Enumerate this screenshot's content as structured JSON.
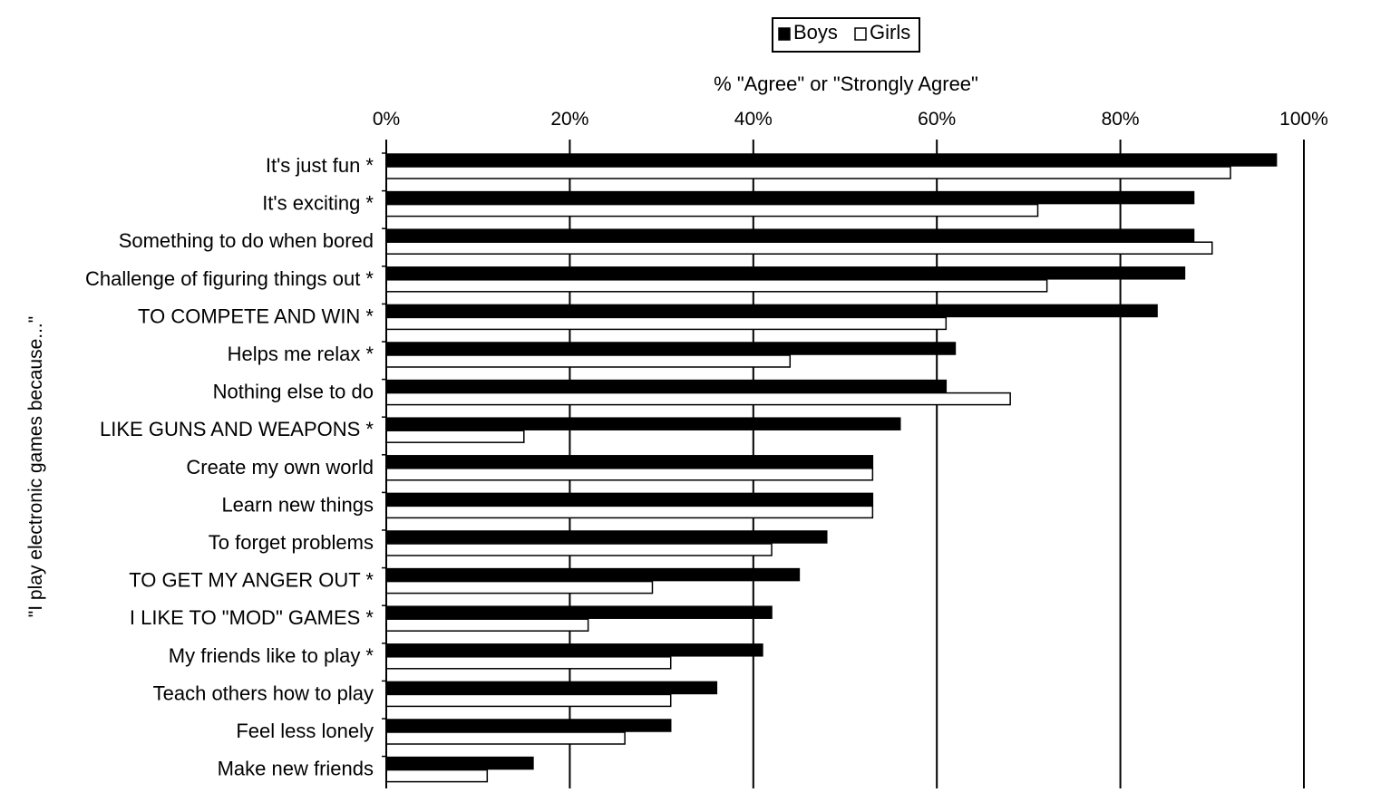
{
  "chart_data": {
    "type": "bar",
    "orientation": "horizontal",
    "xlabel": "% \"Agree\" or \"Strongly Agree\"",
    "ylabel": "\"I play electronic games because...\"",
    "xlim": [
      0,
      100
    ],
    "xticks": [
      "0%",
      "20%",
      "40%",
      "60%",
      "80%",
      "100%"
    ],
    "grid": "vertical",
    "legend_position": "top-center",
    "categories": [
      "It's just fun *",
      "It's exciting *",
      "Something to do when bored",
      "Challenge of figuring things out *",
      "TO COMPETE AND WIN *",
      "Helps me relax *",
      "Nothing else to do",
      "LIKE GUNS AND WEAPONS *",
      "Create my own world",
      "Learn new things",
      "To forget problems",
      "TO GET MY ANGER OUT *",
      "I LIKE TO \"MOD\" GAMES *",
      "My friends like to play *",
      "Teach others how to play",
      "Feel less lonely",
      "Make new friends"
    ],
    "series": [
      {
        "name": "Boys",
        "color": "#000000",
        "fill": "solid",
        "values": [
          97,
          88,
          88,
          87,
          84,
          62,
          61,
          56,
          53,
          53,
          48,
          45,
          42,
          41,
          36,
          31,
          16
        ]
      },
      {
        "name": "Girls",
        "color": "#ffffff",
        "fill": "outline",
        "values": [
          92,
          71,
          90,
          72,
          61,
          44,
          68,
          15,
          53,
          53,
          42,
          29,
          22,
          31,
          31,
          26,
          11
        ]
      }
    ]
  }
}
